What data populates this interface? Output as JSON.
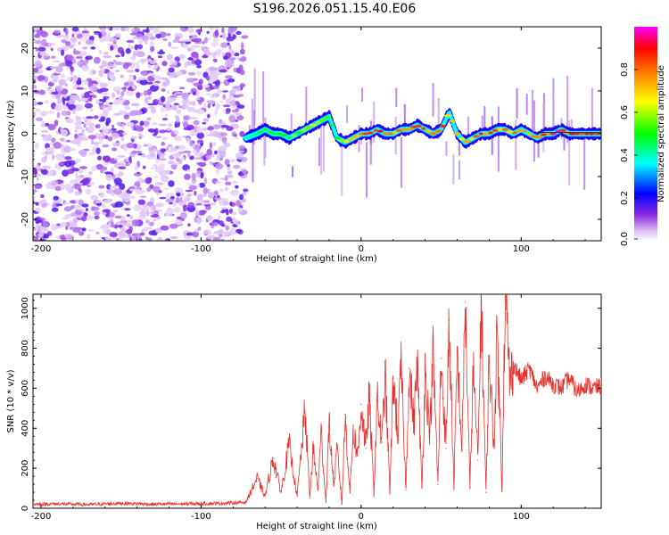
{
  "title": "S196.2026.051.15.40.E06",
  "chart_data": [
    {
      "type": "heatmap",
      "xlabel": "Height of straight line (km)",
      "ylabel": "Frequency (Hz)",
      "xlim": [
        -205,
        150
      ],
      "ylim": [
        -25,
        25
      ],
      "xticks": [
        -200,
        -100,
        0,
        100
      ],
      "yticks": [
        -20,
        -10,
        0,
        10,
        20
      ],
      "colorbar": {
        "label": "Normalized spectral amplitude",
        "range": [
          0,
          1
        ],
        "ticks": [
          "0.0",
          "0.2",
          "0.4",
          "0.6",
          "0.8"
        ],
        "colors": [
          "#ffffff",
          "#d8b8f5",
          "#8a2be2",
          "#0000ff",
          "#00ffff",
          "#00ff00",
          "#ffff00",
          "#ff8000",
          "#ff0000",
          "#ff00ff"
        ]
      },
      "noise_region_km": [
        -205,
        -72
      ],
      "ridge": {
        "x_km": [
          -72,
          -65,
          -60,
          -55,
          -50,
          -45,
          -40,
          -35,
          -30,
          -25,
          -20,
          -15,
          -10,
          -5,
          0,
          5,
          10,
          15,
          20,
          25,
          30,
          35,
          40,
          45,
          50,
          55,
          60,
          65,
          70,
          75,
          80,
          85,
          90,
          95,
          100,
          105,
          110,
          115,
          120,
          125,
          130,
          135,
          140,
          145,
          150
        ],
        "freq_hz": [
          -1,
          0,
          1,
          0,
          0,
          -1,
          0,
          1,
          2,
          3,
          4,
          -1,
          -2,
          -1,
          0,
          0,
          1,
          0,
          0,
          1,
          1,
          2,
          1,
          0,
          1,
          5,
          0,
          -2,
          -1,
          0,
          0,
          1,
          1,
          0,
          1,
          0,
          -1,
          0,
          0,
          1,
          0,
          0,
          0,
          0,
          0
        ],
        "amplitude": [
          0.4,
          0.5,
          0.6,
          0.5,
          0.6,
          0.5,
          0.6,
          0.7,
          0.7,
          0.6,
          0.5,
          0.6,
          0.7,
          0.7,
          0.8,
          0.85,
          0.9,
          0.9,
          0.85,
          0.8,
          0.9,
          0.85,
          0.8,
          0.8,
          0.85,
          0.7,
          0.75,
          0.8,
          0.85,
          0.85,
          0.9,
          0.85,
          0.8,
          0.85,
          0.85,
          0.8,
          0.85,
          0.9,
          0.95,
          0.95,
          0.9,
          0.95,
          0.95,
          0.9,
          0.9
        ]
      }
    },
    {
      "type": "line",
      "xlabel": "Height of straight line (km)",
      "ylabel": "SNR (10 * v/v)",
      "xlim": [
        -205,
        150
      ],
      "ylim": [
        0,
        1070
      ],
      "xticks": [
        -200,
        -100,
        0,
        100
      ],
      "yticks": [
        0,
        200,
        400,
        600,
        800,
        1000
      ],
      "color": "#e8302c",
      "series": [
        {
          "name": "SNR",
          "x": [
            -205,
            -190,
            -170,
            -150,
            -130,
            -110,
            -90,
            -72,
            -65,
            -60,
            -55,
            -50,
            -45,
            -40,
            -35,
            -32,
            -30,
            -27,
            -25,
            -22,
            -20,
            -17,
            -15,
            -12,
            -10,
            -7,
            -5,
            -2,
            0,
            3,
            5,
            8,
            10,
            13,
            15,
            18,
            20,
            23,
            25,
            28,
            30,
            33,
            35,
            38,
            40,
            43,
            45,
            48,
            50,
            53,
            55,
            58,
            60,
            63,
            65,
            68,
            70,
            73,
            75,
            78,
            80,
            83,
            85,
            88,
            90,
            93,
            95,
            100,
            105,
            110,
            115,
            120,
            125,
            130,
            135,
            140,
            145,
            150
          ],
          "values": [
            20,
            22,
            18,
            25,
            20,
            22,
            24,
            30,
            150,
            60,
            250,
            80,
            320,
            60,
            490,
            50,
            300,
            90,
            380,
            30,
            420,
            110,
            300,
            20,
            470,
            80,
            390,
            260,
            520,
            300,
            560,
            70,
            540,
            330,
            660,
            80,
            650,
            360,
            720,
            90,
            700,
            420,
            740,
            100,
            680,
            380,
            770,
            120,
            750,
            300,
            940,
            90,
            780,
            290,
            1030,
            100,
            700,
            240,
            1060,
            80,
            760,
            300,
            900,
            100,
            1080,
            620,
            720,
            640,
            700,
            600,
            660,
            620,
            600,
            650,
            580,
            620,
            600,
            610
          ]
        }
      ]
    }
  ]
}
